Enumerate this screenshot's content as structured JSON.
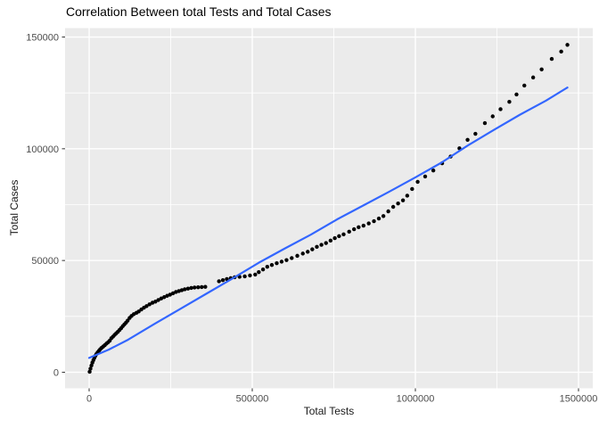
{
  "figure": {
    "title": "Correlation Between total Tests and Total Cases",
    "x_axis": {
      "label": "Total Tests",
      "tick_labels": [
        "0",
        "500000",
        "1000000",
        "1500000"
      ]
    },
    "y_axis": {
      "label": "Total Cases",
      "tick_labels": [
        "0",
        "50000",
        "100000",
        "150000"
      ]
    },
    "colors": {
      "panel_background": "#EBEBEB",
      "grid_major": "#FFFFFF",
      "grid_minor": "#FFFFFF",
      "point": "#000000",
      "smooth_line": "#3366FF",
      "tick_mark": "#333333",
      "tick_text": "#4D4D4D",
      "title_text": "#000000",
      "axis_title_text": "#1A1A1A"
    }
  },
  "chart_data": {
    "type": "scatter",
    "title": "Correlation Between total Tests and Total Cases",
    "xlabel": "Total Tests",
    "ylabel": "Total Cases",
    "xlim": [
      -73800,
      1543700
    ],
    "ylim": [
      -7200,
      154000
    ],
    "x_ticks": [
      0,
      500000,
      1000000,
      1500000
    ],
    "y_ticks": [
      0,
      50000,
      100000,
      150000
    ],
    "x_minor_ticks": [
      250000,
      750000,
      1250000
    ],
    "y_minor_ticks": [
      25000,
      75000,
      125000
    ],
    "grid": true,
    "legend": false,
    "series": [
      {
        "name": "observations",
        "type": "scatter",
        "color": "#000000",
        "points": [
          [
            1500,
            200
          ],
          [
            4000,
            1600
          ],
          [
            7000,
            3000
          ],
          [
            10000,
            4300
          ],
          [
            13000,
            5400
          ],
          [
            16000,
            6400
          ],
          [
            19000,
            7300
          ],
          [
            22000,
            8100
          ],
          [
            26000,
            8900
          ],
          [
            30000,
            9600
          ],
          [
            34000,
            10300
          ],
          [
            38000,
            10900
          ],
          [
            43000,
            11500
          ],
          [
            48000,
            12100
          ],
          [
            53000,
            12800
          ],
          [
            58000,
            13400
          ],
          [
            63000,
            14100
          ],
          [
            68000,
            15200
          ],
          [
            73000,
            15900
          ],
          [
            78000,
            16700
          ],
          [
            83000,
            17400
          ],
          [
            88000,
            18100
          ],
          [
            93000,
            18900
          ],
          [
            98000,
            19700
          ],
          [
            103000,
            20600
          ],
          [
            108000,
            21400
          ],
          [
            113000,
            22200
          ],
          [
            118000,
            23100
          ],
          [
            124000,
            24300
          ],
          [
            130000,
            25200
          ],
          [
            137000,
            26000
          ],
          [
            145000,
            26600
          ],
          [
            152000,
            27200
          ],
          [
            160000,
            28100
          ],
          [
            168000,
            28900
          ],
          [
            176000,
            29600
          ],
          [
            185000,
            30400
          ],
          [
            194000,
            31100
          ],
          [
            203000,
            31600
          ],
          [
            212000,
            32300
          ],
          [
            221000,
            33000
          ],
          [
            230000,
            33600
          ],
          [
            239000,
            34200
          ],
          [
            248000,
            34700
          ],
          [
            257000,
            35300
          ],
          [
            266000,
            35900
          ],
          [
            275000,
            36300
          ],
          [
            284000,
            36700
          ],
          [
            293000,
            37100
          ],
          [
            303000,
            37400
          ],
          [
            313000,
            37700
          ],
          [
            323000,
            37900
          ],
          [
            334000,
            38000
          ],
          [
            345000,
            38100
          ],
          [
            356000,
            38200
          ],
          [
            398000,
            40700
          ],
          [
            410000,
            41200
          ],
          [
            422000,
            41700
          ],
          [
            434000,
            42100
          ],
          [
            446000,
            42500
          ],
          [
            461000,
            42700
          ],
          [
            477000,
            42900
          ],
          [
            493000,
            43300
          ],
          [
            509000,
            43700
          ],
          [
            520000,
            44800
          ],
          [
            533000,
            46000
          ],
          [
            546000,
            47200
          ],
          [
            560000,
            48000
          ],
          [
            575000,
            48800
          ],
          [
            590000,
            49500
          ],
          [
            605000,
            50200
          ],
          [
            621000,
            51100
          ],
          [
            638000,
            52100
          ],
          [
            655000,
            53100
          ],
          [
            670000,
            53900
          ],
          [
            684000,
            55000
          ],
          [
            698000,
            56100
          ],
          [
            712000,
            57000
          ],
          [
            726000,
            57800
          ],
          [
            740000,
            58900
          ],
          [
            753000,
            60000
          ],
          [
            766000,
            60900
          ],
          [
            780000,
            61700
          ],
          [
            797000,
            62900
          ],
          [
            812000,
            64000
          ],
          [
            826000,
            64900
          ],
          [
            841000,
            65600
          ],
          [
            857000,
            66600
          ],
          [
            873000,
            67600
          ],
          [
            888000,
            68800
          ],
          [
            902000,
            69900
          ],
          [
            917000,
            72000
          ],
          [
            932000,
            74000
          ],
          [
            947000,
            75500
          ],
          [
            962000,
            76900
          ],
          [
            975000,
            79000
          ],
          [
            990000,
            82000
          ],
          [
            1007000,
            85200
          ],
          [
            1030000,
            87600
          ],
          [
            1055000,
            90300
          ],
          [
            1082000,
            93500
          ],
          [
            1108000,
            96500
          ],
          [
            1135000,
            100200
          ],
          [
            1160000,
            104000
          ],
          [
            1184000,
            106700
          ],
          [
            1213000,
            111500
          ],
          [
            1237000,
            114500
          ],
          [
            1261000,
            117700
          ],
          [
            1288000,
            121000
          ],
          [
            1310000,
            124300
          ],
          [
            1334000,
            128300
          ],
          [
            1361000,
            131900
          ],
          [
            1387000,
            135500
          ],
          [
            1418000,
            140200
          ],
          [
            1447000,
            143500
          ],
          [
            1466000,
            146500
          ]
        ]
      },
      {
        "name": "smooth-fit",
        "type": "line",
        "color": "#3366FF",
        "points": [
          [
            0,
            6400
          ],
          [
            60000,
            10100
          ],
          [
            120000,
            14600
          ],
          [
            200000,
            21600
          ],
          [
            280000,
            28400
          ],
          [
            360000,
            35200
          ],
          [
            440000,
            42000
          ],
          [
            520000,
            49000
          ],
          [
            600000,
            55400
          ],
          [
            680000,
            61600
          ],
          [
            760000,
            68400
          ],
          [
            840000,
            74600
          ],
          [
            920000,
            80800
          ],
          [
            1000000,
            87200
          ],
          [
            1080000,
            93800
          ],
          [
            1160000,
            101400
          ],
          [
            1240000,
            108400
          ],
          [
            1320000,
            115200
          ],
          [
            1400000,
            121500
          ],
          [
            1466000,
            127400
          ]
        ]
      }
    ]
  }
}
